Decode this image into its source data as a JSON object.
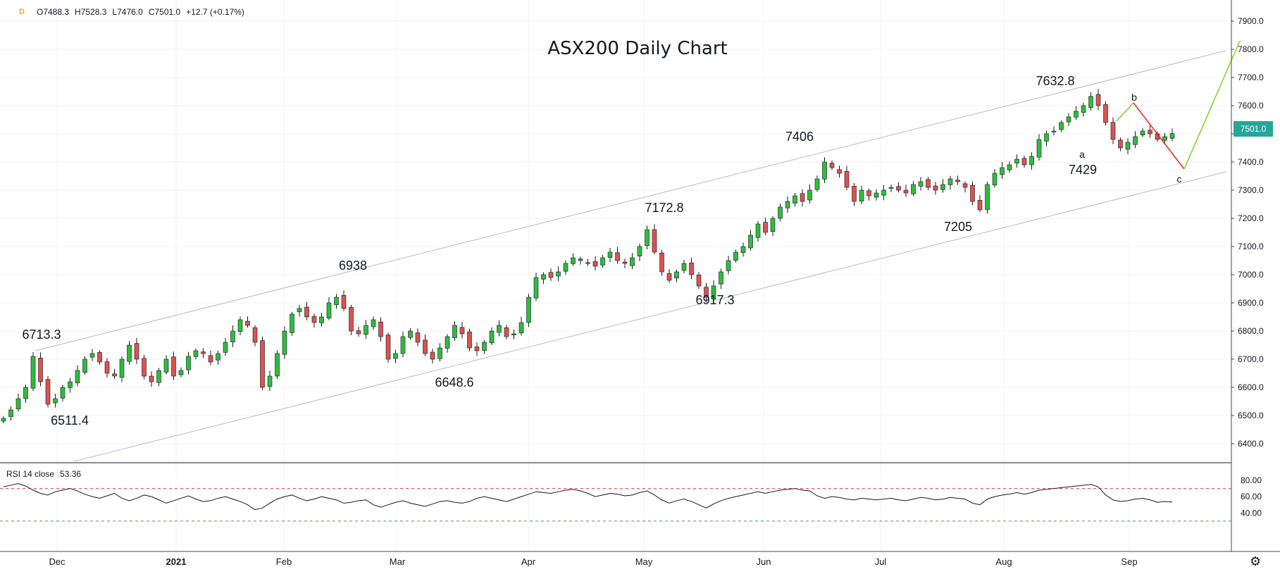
{
  "header": {
    "interval_badge": "D",
    "open": "O7488.3",
    "high": "H7528.3",
    "low": "L7476.0",
    "close": "C7501.0",
    "change": "+12.7 (+0.17%)"
  },
  "chart_data": [
    {
      "type": "candlestick",
      "title": "ASX200 Daily Chart",
      "ylim": [
        6300,
        7950
      ],
      "y_ticks": [
        "7900.0",
        "7800.0",
        "7700.0",
        "7600.0",
        "7500.0",
        "7400.0",
        "7300.0",
        "7200.0",
        "7100.0",
        "7000.0",
        "6900.0",
        "6800.0",
        "6700.0",
        "6600.0",
        "6500.0",
        "6400.0"
      ],
      "x_ticks": [
        "Dec",
        "2021",
        "Feb",
        "Mar",
        "Apr",
        "May",
        "Jun",
        "Jul",
        "Aug",
        "Sep"
      ],
      "last_price": "7501.0",
      "price_path": [
        6490,
        6520,
        6560,
        6600,
        6710,
        6620,
        6540,
        6560,
        6600,
        6620,
        6660,
        6700,
        6720,
        6690,
        6650,
        6640,
        6700,
        6750,
        6700,
        6640,
        6620,
        6660,
        6700,
        6640,
        6660,
        6710,
        6730,
        6720,
        6690,
        6720,
        6760,
        6800,
        6840,
        6820,
        6760,
        6600,
        6640,
        6720,
        6800,
        6860,
        6880,
        6850,
        6830,
        6850,
        6900,
        6920,
        6880,
        6800,
        6790,
        6820,
        6840,
        6780,
        6700,
        6720,
        6780,
        6800,
        6760,
        6720,
        6700,
        6740,
        6780,
        6820,
        6790,
        6740,
        6730,
        6760,
        6800,
        6820,
        6780,
        6790,
        6830,
        6920,
        6990,
        7000,
        6990,
        7010,
        7040,
        7060,
        7050,
        7040,
        7030,
        7060,
        7080,
        7050,
        7040,
        7060,
        7100,
        7160,
        7080,
        7010,
        6980,
        7010,
        7040,
        7000,
        6960,
        6920,
        6960,
        7010,
        7050,
        7080,
        7100,
        7140,
        7180,
        7150,
        7200,
        7240,
        7260,
        7280,
        7260,
        7300,
        7340,
        7400,
        7380,
        7360,
        7310,
        7260,
        7300,
        7280,
        7290,
        7300,
        7310,
        7300,
        7290,
        7320,
        7330,
        7310,
        7300,
        7320,
        7340,
        7330,
        7310,
        7260,
        7230,
        7320,
        7360,
        7380,
        7390,
        7410,
        7390,
        7420,
        7480,
        7500,
        7510,
        7540,
        7560,
        7580,
        7600,
        7632.8,
        7600,
        7540,
        7480,
        7450,
        7470,
        7490,
        7510,
        7500,
        7480,
        7490,
        7501
      ],
      "annotations": [
        "6713.3",
        "6511.4",
        "6938",
        "6648.6",
        "7172.8",
        "6917.3",
        "7406",
        "7205",
        "7632.8",
        "7429",
        "a",
        "b",
        "c"
      ]
    },
    {
      "type": "line",
      "name": "RSI 14 close",
      "value_label": "53.36",
      "ylim": [
        25,
        90
      ],
      "y_ticks": [
        "80.00",
        "60.00",
        "40.00"
      ],
      "levels": [
        70,
        30
      ],
      "values": [
        72,
        74,
        76,
        73,
        68,
        64,
        62,
        66,
        68,
        70,
        67,
        63,
        60,
        58,
        61,
        64,
        58,
        55,
        58,
        62,
        60,
        56,
        52,
        55,
        58,
        61,
        57,
        54,
        55,
        58,
        60,
        57,
        54,
        50,
        44,
        46,
        52,
        57,
        60,
        62,
        58,
        55,
        57,
        60,
        58,
        56,
        52,
        53,
        55,
        56,
        50,
        47,
        50,
        53,
        55,
        52,
        50,
        48,
        51,
        54,
        55,
        53,
        52,
        54,
        58,
        60,
        58,
        56,
        54,
        57,
        60,
        63,
        66,
        65,
        64,
        66,
        68,
        69,
        67,
        64,
        60,
        62,
        64,
        63,
        61,
        62,
        65,
        67,
        62,
        56,
        52,
        55,
        57,
        54,
        50,
        46,
        51,
        55,
        58,
        60,
        62,
        64,
        66,
        64,
        66,
        68,
        69,
        70,
        68,
        67,
        61,
        58,
        60,
        59,
        57,
        56,
        58,
        57,
        56,
        57,
        58,
        56,
        55,
        57,
        59,
        58,
        56,
        57,
        59,
        58,
        57,
        52,
        50,
        57,
        60,
        62,
        63,
        65,
        63,
        65,
        68,
        69,
        70,
        71,
        72,
        73,
        74,
        75,
        72,
        62,
        56,
        54,
        55,
        57,
        58,
        56,
        53,
        54,
        53.36
      ],
      "colors": {
        "line": "#131722",
        "upper_level": "#e53935",
        "lower_level": "#43a047"
      }
    }
  ],
  "colors": {
    "up_candle": "#2ebd3a",
    "down_candle": "#d9534f",
    "channel": "#b8bcc6",
    "projection_down": "#ff1a1a",
    "projection_up": "#7ed321",
    "price_tag": "#26a69a"
  },
  "icons": {
    "settings": "gear-icon"
  }
}
